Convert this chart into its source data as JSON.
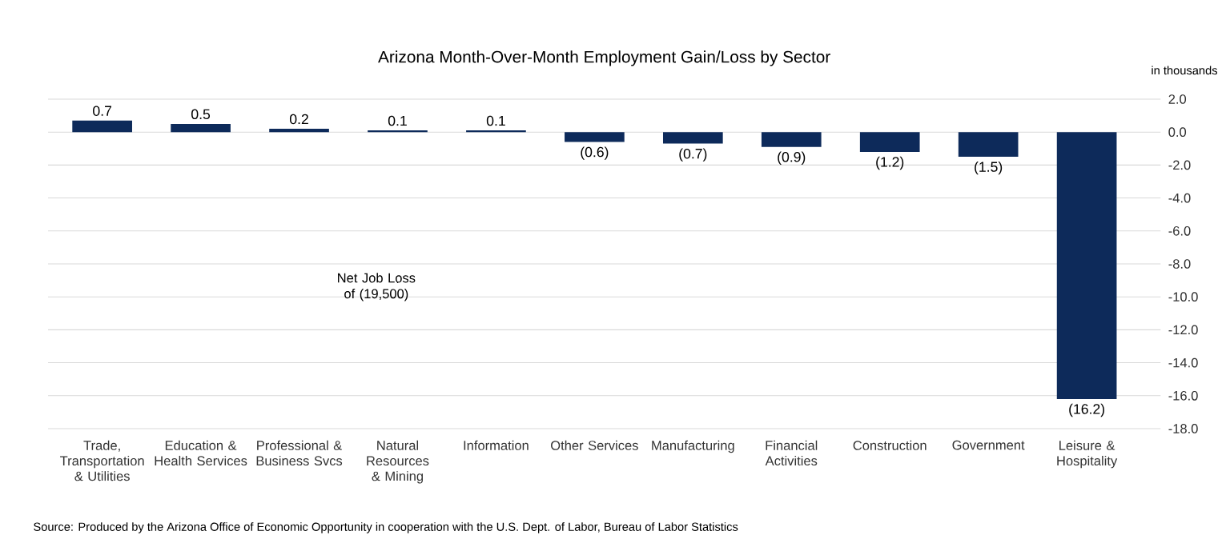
{
  "chart_data": {
    "type": "bar",
    "title": "Arizona Month-Over-Month  Employment Gain/Loss by Sector",
    "ylabel": "in thousands",
    "categories": [
      "Trade, Transportation & Utilities",
      "Education & Health Services",
      "Professional & Business Svcs",
      "Natural Resources & Mining",
      "Information",
      "Other Services",
      "Manufacturing",
      "Financial Activities",
      "Construction",
      "Government",
      "Leisure & Hospitality"
    ],
    "values": [
      0.7,
      0.5,
      0.2,
      0.1,
      0.1,
      -0.6,
      -0.7,
      -0.9,
      -1.2,
      -1.5,
      -16.2
    ],
    "value_labels": [
      "0.7",
      "0.5",
      "0.2",
      "0.1",
      "0.1",
      "(0.6)",
      "(0.7)",
      "(0.9)",
      "(1.2)",
      "(1.5)",
      "(16.2)"
    ],
    "color": "#0d2a5a",
    "ylim": [
      -18,
      2
    ],
    "yticks": [
      {
        "value": 2,
        "label": "2.0"
      },
      {
        "value": 0,
        "label": "0.0"
      },
      {
        "value": -2,
        "label": "-2.0"
      },
      {
        "value": -4,
        "label": "-4.0"
      },
      {
        "value": -6,
        "label": "-6.0"
      },
      {
        "value": -8,
        "label": "-8.0"
      },
      {
        "value": -10,
        "label": "-10.0"
      },
      {
        "value": -12,
        "label": "-12.0"
      },
      {
        "value": -14,
        "label": "-14.0"
      },
      {
        "value": -16,
        "label": "-16.0"
      },
      {
        "value": -18,
        "label": "-18.0"
      }
    ],
    "grid": "y",
    "annotations": [
      "Net Job Loss of (19,500)",
      "Source: Produced by the Arizona Office of Economic Opportunity in cooperation with the U.S. Dept. of Labor, Bureau of Labor Statistics"
    ]
  }
}
